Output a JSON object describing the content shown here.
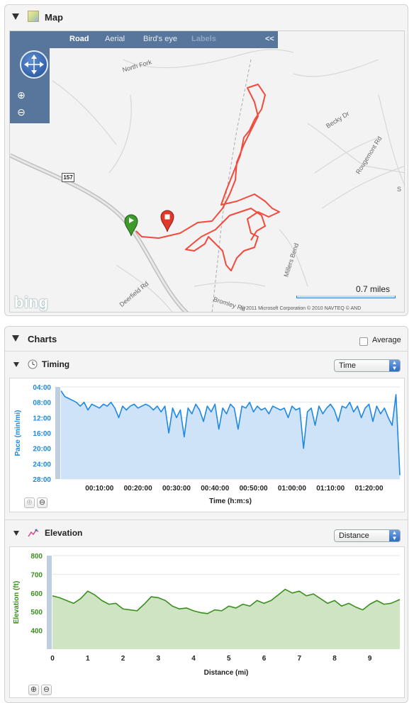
{
  "map_panel": {
    "title": "Map",
    "toolbar": {
      "road": "Road",
      "aerial": "Aerial",
      "birdseye": "Bird's eye",
      "labels": "Labels",
      "collapse": "<<"
    },
    "zoom_in": "⊕",
    "zoom_out": "⊖",
    "route_marker": "157",
    "road_labels": {
      "north_fork": "North Fork",
      "becky": "Becky Dr",
      "rougemont": "Rougemont Rd",
      "millers_bend": "Millers Bend",
      "deerfield": "Deerfield Rd",
      "bromley": "Bromley Rd",
      "s_label": "S"
    },
    "scale": "0.7 miles",
    "bing": "bing",
    "copyright": "© 2011 Microsoft Corporation    © 2010 NAVTEQ    © AND"
  },
  "charts_panel": {
    "title": "Charts",
    "average_label": "Average",
    "average_checked": false,
    "timing": {
      "title": "Timing",
      "select_value": "Time",
      "zoom_in": "⊕",
      "zoom_out": "⊖"
    },
    "elevation": {
      "title": "Elevation",
      "select_value": "Distance",
      "zoom_in": "⊕",
      "zoom_out": "⊖"
    }
  },
  "chart_data": [
    {
      "id": "timing",
      "type": "area",
      "xlabel": "Time (h:m:s)",
      "ylabel": "Pace (min/mi)",
      "y_inverted": true,
      "ylim": [
        4,
        28
      ],
      "y_ticks": [
        "04:00",
        "08:00",
        "12:00",
        "16:00",
        "20:00",
        "24:00",
        "28:00"
      ],
      "y_tick_values": [
        4,
        8,
        12,
        16,
        20,
        24,
        28
      ],
      "xlim": [
        0,
        88
      ],
      "x_ticks": [
        "00:10:00",
        "00:20:00",
        "00:30:00",
        "00:40:00",
        "00:50:00",
        "01:00:00",
        "01:10:00",
        "01:20:00"
      ],
      "x_tick_values": [
        10,
        20,
        30,
        40,
        50,
        60,
        70,
        80
      ],
      "color": "#1e88e5",
      "fill": "#cfe3f8",
      "x": [
        0,
        1,
        2,
        3,
        4,
        5,
        6,
        7,
        8,
        9,
        10,
        11,
        12,
        13,
        14,
        15,
        16,
        17,
        18,
        19,
        20,
        21,
        22,
        23,
        24,
        25,
        26,
        27,
        28,
        29,
        30,
        31,
        32,
        33,
        34,
        35,
        36,
        37,
        38,
        39,
        40,
        41,
        42,
        43,
        44,
        45,
        46,
        47,
        48,
        49,
        50,
        51,
        52,
        53,
        54,
        55,
        56,
        57,
        58,
        59,
        60,
        61,
        62,
        63,
        64,
        65,
        66,
        67,
        68,
        69,
        70,
        71,
        72,
        73,
        74,
        75,
        76,
        77,
        78,
        79,
        80,
        81,
        82,
        83,
        84,
        85,
        86,
        87,
        88
      ],
      "values": [
        5,
        6.5,
        7,
        7.5,
        8,
        9,
        8,
        10,
        8.5,
        9,
        9.5,
        8.5,
        9,
        8,
        9.5,
        12,
        9,
        10,
        9,
        8.5,
        9.5,
        9,
        8.5,
        9,
        10,
        9,
        10.5,
        9,
        16,
        9.5,
        12,
        10,
        17,
        9.5,
        11,
        8.5,
        10,
        13,
        9,
        10.5,
        8.5,
        15,
        9.5,
        11,
        8.5,
        9.5,
        15,
        9,
        9.5,
        8,
        10.5,
        9,
        10,
        9.5,
        11,
        9,
        9.5,
        10,
        9.5,
        12,
        9,
        10,
        9.5,
        20,
        10.5,
        9.5,
        14,
        9,
        11,
        9.5,
        8.5,
        10,
        13,
        9,
        9.5,
        8,
        10.5,
        9,
        12,
        9.5,
        8.5,
        13,
        9,
        11,
        9.5,
        12,
        14,
        6,
        27
      ]
    },
    {
      "id": "elevation",
      "type": "area",
      "xlabel": "Distance (mi)",
      "ylabel": "Elevation (ft)",
      "ylim": [
        300,
        800
      ],
      "y_ticks": [
        "400",
        "500",
        "600",
        "700",
        "800"
      ],
      "y_tick_values": [
        400,
        500,
        600,
        700,
        800
      ],
      "xlim": [
        0,
        9.85
      ],
      "x_ticks": [
        "0",
        "1",
        "2",
        "3",
        "4",
        "5",
        "6",
        "7",
        "8",
        "9"
      ],
      "x_tick_values": [
        0,
        1,
        2,
        3,
        4,
        5,
        6,
        7,
        8,
        9
      ],
      "color": "#3a8f1f",
      "fill": "#cfe4c2",
      "x": [
        0,
        0.2,
        0.4,
        0.6,
        0.8,
        1.0,
        1.2,
        1.4,
        1.6,
        1.8,
        2.0,
        2.2,
        2.4,
        2.6,
        2.8,
        3.0,
        3.2,
        3.4,
        3.6,
        3.8,
        4.0,
        4.2,
        4.4,
        4.6,
        4.8,
        5.0,
        5.2,
        5.4,
        5.6,
        5.8,
        6.0,
        6.2,
        6.4,
        6.6,
        6.8,
        7.0,
        7.2,
        7.4,
        7.6,
        7.8,
        8.0,
        8.2,
        8.4,
        8.6,
        8.8,
        9.0,
        9.2,
        9.4,
        9.6,
        9.85
      ],
      "values": [
        585,
        575,
        560,
        545,
        570,
        610,
        590,
        560,
        540,
        545,
        515,
        510,
        505,
        540,
        580,
        575,
        560,
        530,
        515,
        520,
        505,
        495,
        490,
        510,
        505,
        530,
        520,
        540,
        530,
        560,
        545,
        560,
        590,
        620,
        600,
        610,
        585,
        595,
        570,
        545,
        560,
        530,
        545,
        525,
        510,
        540,
        560,
        540,
        545,
        565
      ]
    }
  ]
}
